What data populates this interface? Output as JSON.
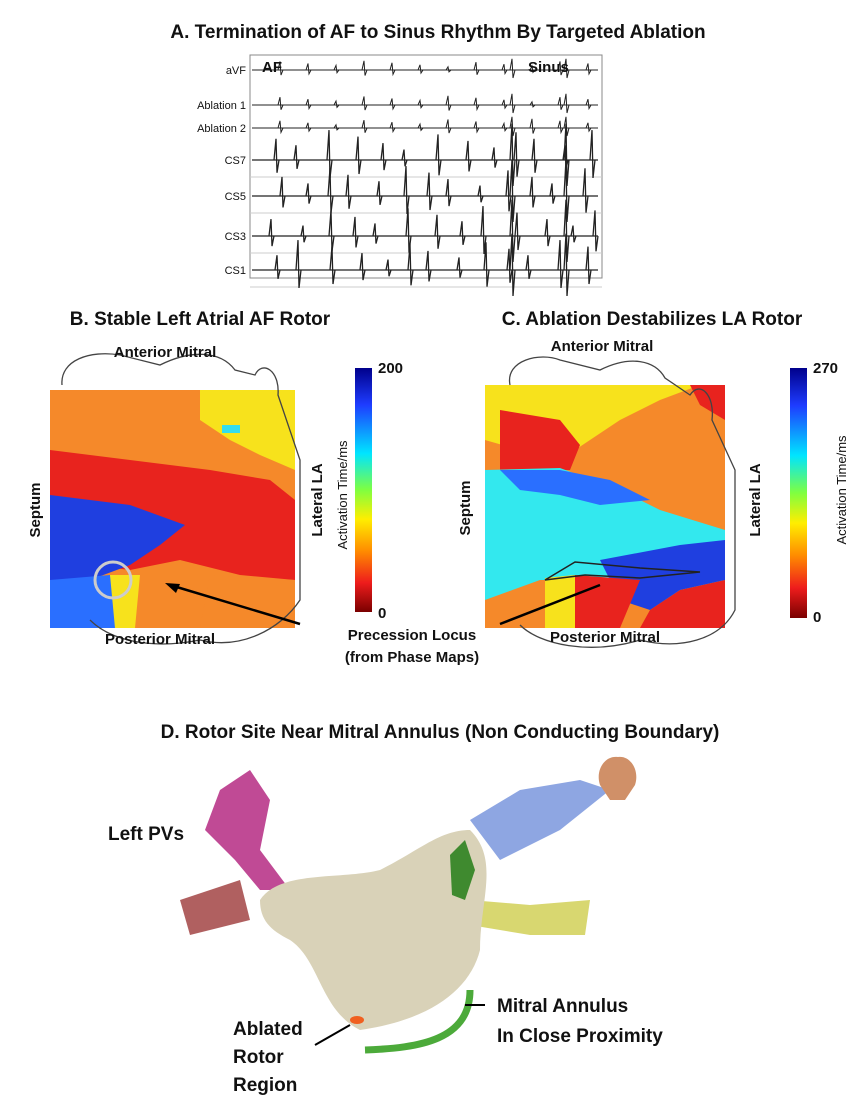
{
  "panel_a": {
    "title": "A. Termination of AF to Sinus Rhythm By Targeted Ablation",
    "rhythm_labels": [
      "AF",
      "Sinus"
    ],
    "channels": [
      "aVF",
      "Ablation 1",
      "Ablation 2",
      "CS7",
      "CS5",
      "CS3",
      "CS1"
    ]
  },
  "panel_b": {
    "title": "B. Stable Left Atrial AF Rotor",
    "labels": {
      "anterior": "Anterior Mitral",
      "septum": "Septum",
      "lateral": "Lateral LA",
      "posterior": "Posterior Mitral"
    },
    "colorbar": {
      "label": "Activation Time/ms",
      "max": "200",
      "min": "0"
    }
  },
  "panel_c": {
    "title": "C. Ablation Destabilizes LA Rotor",
    "labels": {
      "anterior": "Anterior Mitral",
      "septum": "Septum",
      "lateral": "Lateral LA",
      "posterior": "Posterior Mitral"
    },
    "colorbar": {
      "label": "Activation Time/ms",
      "max": "270",
      "min": "0"
    }
  },
  "annotation": {
    "line1": "Precession Locus",
    "line2": "(from Phase Maps)"
  },
  "panel_d": {
    "title": "D. Rotor Site Near Mitral Annulus (Non Conducting Boundary)",
    "labels": {
      "left_pvs": "Left PVs",
      "mitral_1": "Mitral Annulus",
      "mitral_2": "In Close Proximity",
      "ablated_1": "Ablated",
      "ablated_2": "Rotor",
      "ablated_3": "Region"
    }
  }
}
